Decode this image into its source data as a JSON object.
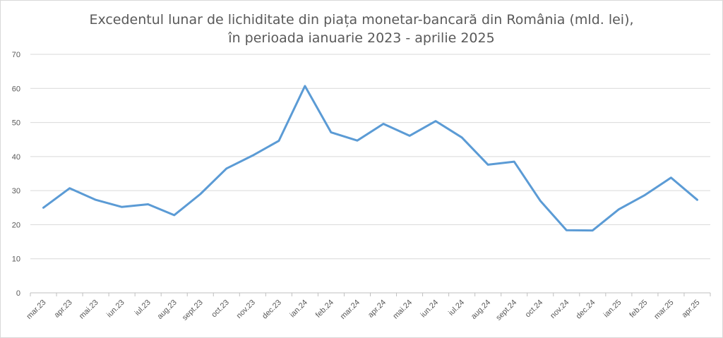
{
  "chart_data": {
    "type": "line",
    "title_line1": "Excedentul lunar de lichiditate din piața monetar-bancară din România (mld. lei),",
    "title_line2": "în perioada ianuarie 2023 - aprilie 2025",
    "categories": [
      "mar.23",
      "apr.23",
      "mai.23",
      "iun.23",
      "iul.23",
      "aug.23",
      "sept.23",
      "oct.23",
      "nov.23",
      "dec.23",
      "ian.24",
      "feb.24",
      "mar.24",
      "apr.24",
      "mai.24",
      "iun.24",
      "iul.24",
      "aug.24",
      "sept.24",
      "oct.24",
      "nov.24",
      "dec.24",
      "ian.25",
      "feb.25",
      "mar.25",
      "apr.25"
    ],
    "values": [
      25,
      30.7,
      27.3,
      25.2,
      26,
      22.8,
      29,
      36.5,
      40.3,
      44.6,
      60.7,
      47.1,
      44.7,
      49.6,
      46.1,
      50.4,
      45.6,
      37.6,
      38.5,
      27,
      18.4,
      18.3,
      24.5,
      28.7,
      33.8,
      27.3
    ],
    "ylim": [
      0,
      70
    ],
    "yticks": [
      0,
      10,
      20,
      30,
      40,
      50,
      60,
      70
    ],
    "grid": true,
    "legend": "none",
    "colors": {
      "line": "#5b9bd5",
      "grid": "#d9d9d9",
      "text": "#595959"
    }
  }
}
